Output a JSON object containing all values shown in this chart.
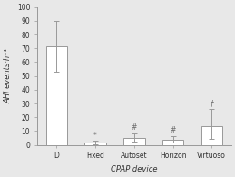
{
  "categories": [
    "D",
    "Fixed",
    "Autoset",
    "Horizon",
    "Virtuoso"
  ],
  "bar_values": [
    71.5,
    1.5,
    5.0,
    3.5,
    13.5
  ],
  "error_plus": [
    18.5,
    1.5,
    3.5,
    3.0,
    12.5
  ],
  "error_minus": [
    18.5,
    1.0,
    2.5,
    2.0,
    9.0
  ],
  "bar_color": "#ffffff",
  "bar_edgecolor": "#999999",
  "error_color": "#999999",
  "xlabel": "CPAP device",
  "ylabel": "AHI events·h⁻¹",
  "ylim": [
    0,
    100
  ],
  "yticks": [
    0,
    10,
    20,
    30,
    40,
    50,
    60,
    70,
    80,
    90,
    100
  ],
  "significance_labels": [
    "",
    "*",
    "#",
    "#",
    "†"
  ],
  "sig_fontsize": 5.5,
  "axis_fontsize": 6,
  "tick_fontsize": 5.5,
  "bar_width": 0.55,
  "bg_color": "#e8e8e8"
}
